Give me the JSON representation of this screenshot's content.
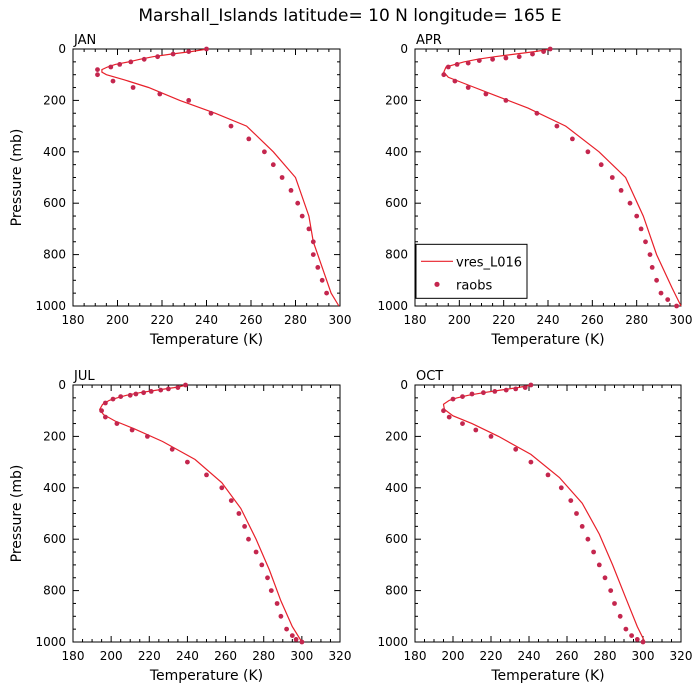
{
  "figure": {
    "title": "Marshall_Islands  latitude= 10 N longitude= 165 E"
  },
  "colors": {
    "model_line": "#e8202a",
    "obs_marker": "#c4264e",
    "axis": "#000000"
  },
  "chart_data": [
    {
      "type": "line",
      "panel_label": "JAN",
      "xlabel": "Temperature (K)",
      "ylabel": "Pressure (mb)",
      "xlim": [
        180,
        300
      ],
      "ylim": [
        1000,
        0
      ],
      "y_reversed": true,
      "xticks": [
        "180",
        "200",
        "220",
        "240",
        "260",
        "280",
        "300"
      ],
      "yticks": [
        "0",
        "200",
        "400",
        "600",
        "800",
        "1000"
      ],
      "legend": null,
      "series": [
        {
          "name": "vres_L016",
          "style": "line",
          "x": [
            240.5,
            233,
            224,
            216,
            210,
            205,
            199,
            195.5,
            193,
            193,
            195,
            203,
            214,
            228,
            244,
            258,
            270,
            280,
            286,
            288,
            292,
            296,
            299.5
          ],
          "y": [
            0,
            10,
            20,
            30,
            40,
            50,
            60,
            70,
            80,
            90,
            100,
            120,
            150,
            200,
            250,
            300,
            400,
            500,
            650,
            750,
            850,
            950,
            1000
          ]
        },
        {
          "name": "raobs",
          "style": "markers",
          "x": [
            240,
            232,
            225,
            218,
            212,
            206,
            201,
            197,
            191,
            191,
            198,
            207,
            219,
            232,
            242,
            251,
            259,
            266,
            270,
            274,
            278,
            281,
            283,
            286,
            288,
            288,
            290,
            292,
            294
          ],
          "y": [
            0,
            10,
            20,
            30,
            40,
            50,
            60,
            70,
            80,
            100,
            125,
            150,
            175,
            200,
            250,
            300,
            350,
            400,
            450,
            500,
            550,
            600,
            650,
            700,
            750,
            800,
            850,
            900,
            950
          ]
        }
      ]
    },
    {
      "type": "line",
      "panel_label": "APR",
      "xlabel": "Temperature (K)",
      "ylabel": "",
      "xlim": [
        180,
        300
      ],
      "ylim": [
        1000,
        0
      ],
      "y_reversed": true,
      "xticks": [
        "180",
        "200",
        "220",
        "240",
        "260",
        "280",
        "300"
      ],
      "yticks": [
        "0",
        "200",
        "400",
        "600",
        "800",
        "1000"
      ],
      "legend": {
        "position": "lower-left",
        "entries": [
          "vres_L016",
          "raobs"
        ]
      },
      "series": [
        {
          "name": "vres_L016",
          "style": "line",
          "x": [
            241.5,
            234,
            225,
            216,
            208,
            202,
            198,
            194,
            193,
            195,
            204,
            216,
            231,
            248,
            263,
            275,
            283,
            289,
            296,
            300
          ],
          "y": [
            0,
            10,
            20,
            30,
            40,
            50,
            60,
            70,
            90,
            110,
            140,
            180,
            230,
            300,
            400,
            500,
            650,
            800,
            930,
            1000
          ]
        },
        {
          "name": "raobs",
          "style": "markers",
          "x": [
            241,
            238,
            233,
            227,
            221,
            215,
            209,
            204,
            199,
            195,
            193,
            198,
            204,
            212,
            221,
            235,
            244,
            251,
            258,
            264,
            269,
            273,
            277,
            280,
            282,
            284,
            286,
            287,
            289,
            291,
            294,
            298
          ],
          "y": [
            0,
            10,
            20,
            30,
            35,
            40,
            45,
            55,
            60,
            70,
            100,
            125,
            150,
            175,
            200,
            250,
            300,
            350,
            400,
            450,
            500,
            550,
            600,
            650,
            700,
            750,
            800,
            850,
            900,
            950,
            975,
            1000
          ]
        }
      ]
    },
    {
      "type": "line",
      "panel_label": "JUL",
      "xlabel": "Temperature (K)",
      "ylabel": "Pressure (mb)",
      "xlim": [
        180,
        320
      ],
      "ylim": [
        1000,
        0
      ],
      "y_reversed": true,
      "xticks": [
        "180",
        "200",
        "220",
        "240",
        "260",
        "280",
        "300",
        "320"
      ],
      "yticks": [
        "0",
        "200",
        "400",
        "600",
        "800",
        "1000"
      ],
      "legend": null,
      "series": [
        {
          "name": "vres_L016",
          "style": "line",
          "x": [
            240,
            233,
            224,
            215,
            208,
            203,
            199,
            195.5,
            194,
            196,
            202,
            212,
            227,
            244,
            258,
            268,
            276,
            283,
            289,
            295,
            300
          ],
          "y": [
            0,
            10,
            20,
            30,
            40,
            50,
            60,
            75,
            95,
            115,
            140,
            170,
            220,
            290,
            380,
            480,
            600,
            720,
            840,
            940,
            1000
          ]
        },
        {
          "name": "raobs",
          "style": "markers",
          "x": [
            239,
            235,
            230,
            226,
            221,
            217,
            213,
            210,
            205,
            201,
            197,
            195,
            197,
            203,
            211,
            219,
            232,
            240,
            250,
            258,
            263,
            267,
            270,
            272,
            276,
            279,
            282,
            284,
            287,
            289,
            292,
            295,
            297,
            300
          ],
          "y": [
            0,
            10,
            15,
            20,
            25,
            30,
            35,
            40,
            45,
            55,
            70,
            100,
            125,
            150,
            175,
            200,
            250,
            300,
            350,
            400,
            450,
            500,
            550,
            600,
            650,
            700,
            750,
            800,
            850,
            900,
            950,
            975,
            990,
            1000
          ]
        }
      ]
    },
    {
      "type": "line",
      "panel_label": "OCT",
      "xlabel": "Temperature (K)",
      "ylabel": "",
      "xlim": [
        180,
        320
      ],
      "ylim": [
        1000,
        0
      ],
      "y_reversed": true,
      "xticks": [
        "180",
        "200",
        "220",
        "240",
        "260",
        "280",
        "300",
        "320"
      ],
      "yticks": [
        "0",
        "200",
        "400",
        "600",
        "800",
        "1000"
      ],
      "legend": null,
      "series": [
        {
          "name": "vres_L016",
          "style": "line",
          "x": [
            241.5,
            234,
            225,
            216,
            208,
            202,
            198,
            195,
            195.5,
            200,
            210,
            224,
            241,
            256,
            268,
            277,
            284,
            291,
            297,
            301
          ],
          "y": [
            0,
            10,
            20,
            30,
            40,
            50,
            60,
            75,
            95,
            120,
            150,
            200,
            270,
            360,
            460,
            580,
            700,
            830,
            940,
            1000
          ]
        },
        {
          "name": "raobs",
          "style": "markers",
          "x": [
            241,
            238,
            233,
            228,
            222,
            216,
            210,
            205,
            200,
            195,
            198,
            205,
            212,
            220,
            233,
            241,
            250,
            257,
            262,
            265,
            268,
            271,
            274,
            277,
            280,
            283,
            285,
            288,
            291,
            294,
            297,
            300
          ],
          "y": [
            0,
            10,
            15,
            20,
            25,
            30,
            35,
            45,
            55,
            100,
            125,
            150,
            175,
            200,
            250,
            300,
            350,
            400,
            450,
            500,
            550,
            600,
            650,
            700,
            750,
            800,
            850,
            900,
            950,
            975,
            990,
            1000
          ]
        }
      ]
    }
  ]
}
